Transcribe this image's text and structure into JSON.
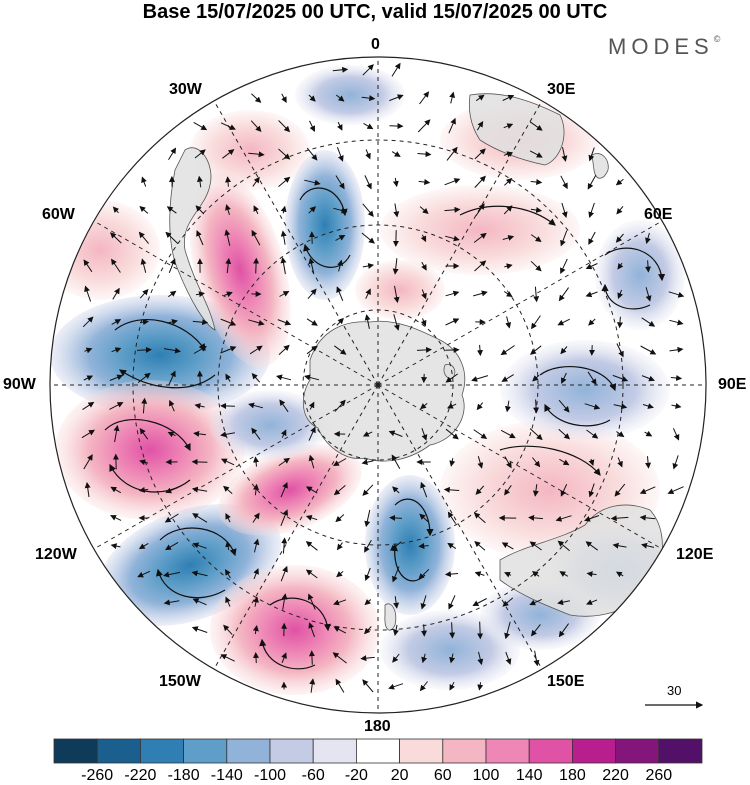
{
  "title": "Base 15/07/2025 00 UTC, valid 15/07/2025 00 UTC",
  "brand": "MODES",
  "brand_mark": "©",
  "longitude_labels": {
    "lon_0": "0",
    "lon_30e": "30E",
    "lon_60e": "60E",
    "lon_90e": "90E",
    "lon_120e": "120E",
    "lon_150e": "150E",
    "lon_180": "180",
    "lon_150w": "150W",
    "lon_120w": "120W",
    "lon_90w": "90W",
    "lon_60w": "60W",
    "lon_30w": "30W"
  },
  "vector_scale_label": "30",
  "colorbar": {
    "labels": [
      "-260",
      "-220",
      "-180",
      "-140",
      "-100",
      "-60",
      "-20",
      "20",
      "60",
      "100",
      "140",
      "180",
      "220",
      "260"
    ],
    "colors": [
      "#0e3b5a",
      "#1b5f8f",
      "#2f7fb4",
      "#5e9ec8",
      "#91b3d9",
      "#c3cbe5",
      "#e4e5f1",
      "#ffffff",
      "#f9dbdb",
      "#f4b6c2",
      "#ee86b6",
      "#e052a5",
      "#b81e8e",
      "#83157b",
      "#531068"
    ]
  },
  "colors": {
    "land": "#e0e0e0",
    "coast": "#555555",
    "grid": "#222222"
  }
}
